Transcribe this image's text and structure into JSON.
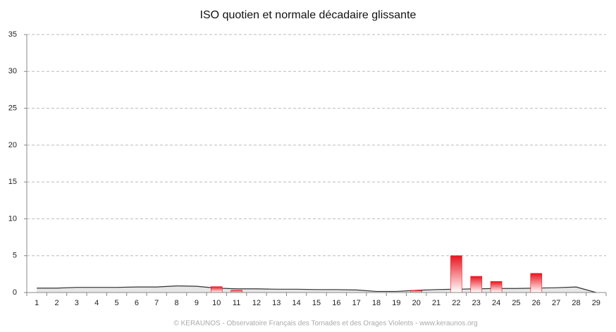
{
  "chart_data": {
    "type": "bar",
    "title": "ISO quotien et normale décadaire glissante",
    "footer": "© KERAUNOS - Observatoire Français des Tornades et des Orages Violents - www.keraunos.org",
    "categories": [
      "1",
      "2",
      "3",
      "4",
      "5",
      "6",
      "7",
      "8",
      "9",
      "10",
      "11",
      "12",
      "13",
      "14",
      "15",
      "16",
      "17",
      "18",
      "19",
      "20",
      "21",
      "22",
      "23",
      "24",
      "25",
      "26",
      "27",
      "28",
      "29"
    ],
    "series": [
      {
        "type": "area",
        "color": "#e6e6e6",
        "line_color": "#333333",
        "values": [
          0.6,
          0.6,
          0.7,
          0.7,
          0.7,
          0.75,
          0.75,
          0.9,
          0.85,
          0.6,
          0.5,
          0.5,
          0.45,
          0.45,
          0.4,
          0.4,
          0.35,
          0.15,
          0.15,
          0.3,
          0.4,
          0.45,
          0.5,
          0.55,
          0.55,
          0.6,
          0.65,
          0.75,
          0
        ]
      },
      {
        "type": "bar",
        "color": "#e8141e",
        "values": [
          0,
          0,
          0,
          0,
          0,
          0,
          0,
          0,
          0,
          0.8,
          0.3,
          0,
          0,
          0,
          0,
          0,
          0,
          0,
          0,
          0.3,
          0,
          5,
          2.2,
          1.5,
          0,
          2.6,
          0,
          0,
          0
        ]
      }
    ],
    "ylim": [
      0,
      35
    ],
    "yticks": [
      0,
      5,
      10,
      15,
      20,
      25,
      30,
      35
    ],
    "grid": true
  }
}
